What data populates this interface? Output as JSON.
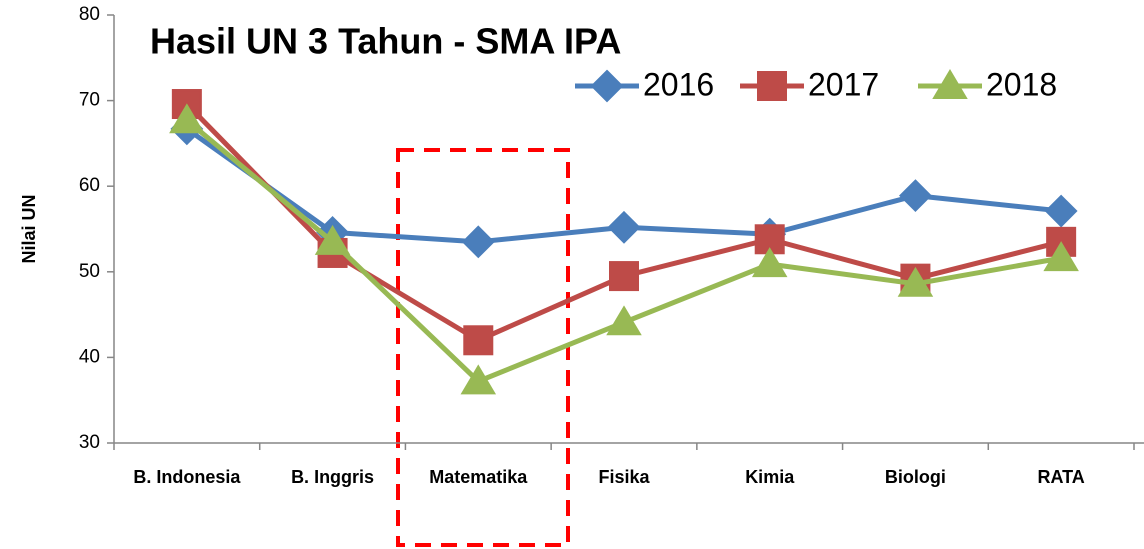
{
  "chart_data": {
    "type": "line",
    "title": "Hasil UN 3 Tahun - SMA IPA",
    "y_label": "Nilai UN",
    "categories": [
      "B. Indonesia",
      "B. Inggris",
      "Matematika",
      "Fisika",
      "Kimia",
      "Biologi",
      "RATA"
    ],
    "series": [
      {
        "name": "2016",
        "color": "#4a7ebb",
        "marker": "diamond",
        "values": [
          66.7,
          54.6,
          53.5,
          55.2,
          54.4,
          58.9,
          57.1
        ]
      },
      {
        "name": "2017",
        "color": "#be4b48",
        "marker": "square",
        "values": [
          69.6,
          52.2,
          42.0,
          49.5,
          53.8,
          49.2,
          53.5
        ]
      },
      {
        "name": "2018",
        "color": "#98b954",
        "marker": "triangle",
        "values": [
          67.7,
          53.5,
          37.2,
          44.1,
          50.9,
          48.6,
          51.6
        ]
      }
    ],
    "ylim": [
      30,
      80
    ],
    "yticks": [
      30,
      40,
      50,
      60,
      70,
      80
    ],
    "grid": false,
    "legend": "top-right"
  }
}
